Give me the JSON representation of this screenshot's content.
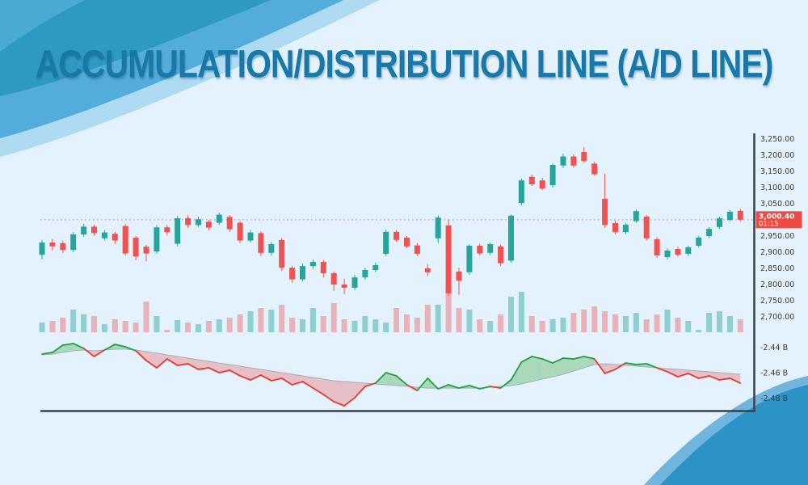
{
  "page": {
    "title": "ACCUMULATION/DISTRIBUTION LINE (A/D LINE)",
    "title_color": "#1878A8",
    "background": "#E3F2FC"
  },
  "decor": {
    "tl_pale": "#AEDAF2",
    "tl_mid": "#54ACDB",
    "tl_dark": "#2E99C3",
    "tl_corner": "#49ABD3",
    "br_highlight": "#6FB5DE",
    "br_main": "#2B93C6"
  },
  "chart_data": {
    "type": "candlestick",
    "title": "ACCUMULATION/DISTRIBUTION LINE (A/D LINE)",
    "panes": [
      "price-candles",
      "volume",
      "ad-indicator"
    ],
    "grid": "off",
    "legend": "none",
    "price_axis": {
      "side": "right",
      "min": 2700,
      "max": 3250,
      "step": 50,
      "labels": [
        {
          "text": "3,250.00",
          "value": 3250
        },
        {
          "text": "3,200.00",
          "value": 3200
        },
        {
          "text": "3,150.00",
          "value": 3150
        },
        {
          "text": "3,100.00",
          "value": 3100
        },
        {
          "text": "3,050.00",
          "value": 3050
        },
        {
          "text": "2,950.00",
          "value": 2950
        },
        {
          "text": "2,900.00",
          "value": 2900
        },
        {
          "text": "2,850.00",
          "value": 2850
        },
        {
          "text": "2,800.00",
          "value": 2800
        },
        {
          "text": "2,750.00",
          "value": 2750
        },
        {
          "text": "2,700.00",
          "value": 2700
        }
      ]
    },
    "last_price": {
      "text": "3,000.40",
      "time": "01:15",
      "value": 3000.4
    },
    "ad_axis": {
      "side": "right",
      "units": "billions",
      "labels": [
        {
          "text": "-2.44 B",
          "value": -2.44
        },
        {
          "text": "-2.46 B",
          "value": -2.46
        },
        {
          "text": "-2.48 B",
          "value": -2.48
        }
      ]
    },
    "candles": {
      "ohlc": [
        [
          2892,
          2938,
          2878,
          2930
        ],
        [
          2930,
          2941,
          2905,
          2918
        ],
        [
          2928,
          2935,
          2898,
          2907
        ],
        [
          2907,
          2962,
          2900,
          2955
        ],
        [
          2955,
          2988,
          2948,
          2979
        ],
        [
          2979,
          2985,
          2951,
          2959
        ],
        [
          2943,
          2968,
          2936,
          2961
        ],
        [
          2957,
          2963,
          2925,
          2936
        ],
        [
          2981,
          2987,
          2890,
          2896
        ],
        [
          2945,
          2950,
          2875,
          2887
        ],
        [
          2917,
          2922,
          2872,
          2896
        ],
        [
          2902,
          2983,
          2895,
          2977
        ],
        [
          2977,
          2984,
          2952,
          2962
        ],
        [
          2926,
          3012,
          2918,
          3005
        ],
        [
          3005,
          3014,
          2975,
          2984
        ],
        [
          2984,
          3010,
          2978,
          3002
        ],
        [
          2994,
          3000,
          2968,
          2976
        ],
        [
          2991,
          3022,
          2985,
          3016
        ],
        [
          3009,
          3015,
          2963,
          2971
        ],
        [
          2991,
          2996,
          2928,
          2936
        ],
        [
          2936,
          2968,
          2930,
          2961
        ],
        [
          2959,
          2964,
          2888,
          2898
        ],
        [
          2898,
          2932,
          2890,
          2925
        ],
        [
          2938,
          2944,
          2842,
          2852
        ],
        [
          2852,
          2858,
          2805,
          2816
        ],
        [
          2816,
          2865,
          2810,
          2857
        ],
        [
          2857,
          2878,
          2848,
          2870
        ],
        [
          2870,
          2876,
          2822,
          2835
        ],
        [
          2835,
          2840,
          2780,
          2800
        ],
        [
          2800,
          2818,
          2770,
          2790
        ],
        [
          2790,
          2830,
          2783,
          2822
        ],
        [
          2822,
          2852,
          2815,
          2845
        ],
        [
          2845,
          2868,
          2838,
          2860
        ],
        [
          2895,
          2970,
          2888,
          2963
        ],
        [
          2963,
          2968,
          2932,
          2938
        ],
        [
          2945,
          2950,
          2912,
          2918
        ],
        [
          2921,
          2928,
          2888,
          2895
        ],
        [
          2850,
          2862,
          2826,
          2838
        ],
        [
          2943,
          3014,
          2928,
          3007
        ],
        [
          2983,
          3001,
          2765,
          2773
        ],
        [
          2840,
          2852,
          2768,
          2812
        ],
        [
          2838,
          2925,
          2830,
          2920
        ],
        [
          2920,
          2926,
          2890,
          2896
        ],
        [
          2898,
          2930,
          2892,
          2925
        ],
        [
          2918,
          2924,
          2858,
          2866
        ],
        [
          2874,
          3016,
          2868,
          3013
        ],
        [
          3052,
          3128,
          3045,
          3122
        ],
        [
          3133,
          3140,
          3105,
          3110
        ],
        [
          3122,
          3130,
          3092,
          3097
        ],
        [
          3107,
          3175,
          3100,
          3170
        ],
        [
          3168,
          3205,
          3160,
          3196
        ],
        [
          3196,
          3202,
          3162,
          3168
        ],
        [
          3210,
          3225,
          3176,
          3182
        ],
        [
          3174,
          3180,
          3136,
          3141
        ],
        [
          3065,
          3142,
          2975,
          2984
        ],
        [
          2990,
          2998,
          2955,
          2962
        ],
        [
          2962,
          2990,
          2956,
          2985
        ],
        [
          2996,
          3032,
          2990,
          3027
        ],
        [
          3010,
          3016,
          2936,
          2943
        ],
        [
          2940,
          2946,
          2882,
          2890
        ],
        [
          2885,
          2912,
          2878,
          2905
        ],
        [
          2910,
          2916,
          2886,
          2892
        ],
        [
          2895,
          2920,
          2888,
          2915
        ],
        [
          2920,
          2950,
          2914,
          2945
        ],
        [
          2950,
          2978,
          2944,
          2972
        ],
        [
          2978,
          3010,
          2972,
          3005
        ],
        [
          3000,
          3030,
          2995,
          3025
        ],
        [
          3028,
          3034,
          2994,
          3000.4
        ]
      ]
    },
    "volume": [
      12,
      14,
      18,
      28,
      22,
      20,
      10,
      16,
      14,
      12,
      38,
      20,
      3,
      15,
      12,
      10,
      14,
      16,
      18,
      22,
      26,
      30,
      28,
      34,
      18,
      16,
      30,
      20,
      36,
      16,
      14,
      20,
      16,
      12,
      30,
      22,
      18,
      34,
      34,
      55,
      30,
      28,
      16,
      14,
      22,
      44,
      50,
      20,
      14,
      16,
      18,
      24,
      28,
      32,
      26,
      22,
      20,
      24,
      16,
      22,
      28,
      18,
      14,
      3,
      24,
      26,
      20,
      16
    ],
    "ad_indicator": {
      "ad": [
        -2.4451,
        -2.4438,
        -2.4381,
        -2.4368,
        -2.4406,
        -2.447,
        -2.4419,
        -2.4375,
        -2.4394,
        -2.4425,
        -2.4502,
        -2.4559,
        -2.4489,
        -2.454,
        -2.4527,
        -2.4571,
        -2.4559,
        -2.4597,
        -2.4578,
        -2.4622,
        -2.4654,
        -2.4616,
        -2.466,
        -2.4641,
        -2.4692,
        -2.4667,
        -2.4718,
        -2.4768,
        -2.4825,
        -2.4857,
        -2.4794,
        -2.4705,
        -2.4679,
        -2.4597,
        -2.4622,
        -2.4692,
        -2.4737,
        -2.4641,
        -2.4724,
        -2.4692,
        -2.4718,
        -2.4698,
        -2.4724,
        -2.4705,
        -2.4718,
        -2.4654,
        -2.4514,
        -2.447,
        -2.4489,
        -2.4521,
        -2.4483,
        -2.4489,
        -2.447,
        -2.4489,
        -2.4603,
        -2.4571,
        -2.4521,
        -2.4533,
        -2.4527,
        -2.4559,
        -2.459,
        -2.4629,
        -2.4603,
        -2.4641,
        -2.4622,
        -2.4654,
        -2.4641,
        -2.4679
      ],
      "signal": [
        -2.4457,
        -2.4451,
        -2.4438,
        -2.4425,
        -2.4419,
        -2.4425,
        -2.4419,
        -2.4413,
        -2.4413,
        -2.4419,
        -2.4432,
        -2.4444,
        -2.4457,
        -2.447,
        -2.4483,
        -2.4495,
        -2.4508,
        -2.4521,
        -2.4533,
        -2.4546,
        -2.4559,
        -2.4571,
        -2.4584,
        -2.4597,
        -2.461,
        -2.4622,
        -2.4635,
        -2.4648,
        -2.466,
        -2.4667,
        -2.4673,
        -2.4679,
        -2.4686,
        -2.4692,
        -2.4698,
        -2.4705,
        -2.4711,
        -2.4718,
        -2.4718,
        -2.4718,
        -2.4718,
        -2.4718,
        -2.4718,
        -2.4711,
        -2.4705,
        -2.4698,
        -2.4686,
        -2.4667,
        -2.4648,
        -2.4629,
        -2.461,
        -2.4584,
        -2.4559,
        -2.4533,
        -2.4527,
        -2.4533,
        -2.454,
        -2.4546,
        -2.4552,
        -2.4559,
        -2.4565,
        -2.4571,
        -2.4578,
        -2.4584,
        -2.459,
        -2.4597,
        -2.4603,
        -2.461
      ]
    },
    "colors": {
      "candle_up": "#26A69A",
      "candle_down": "#EF5350",
      "volume_up": "rgba(38,166,154,0.45)",
      "volume_down": "rgba(239,83,80,0.40)",
      "ad_up_line": "#22A042",
      "ad_down_line": "#E53935",
      "ad_up_fill": "rgba(76,175,80,0.38)",
      "ad_down_fill": "rgba(239,83,80,0.32)",
      "signal_line": "#9FA8B0",
      "axis_line": "#37424A",
      "axis_text": "#3C3C3C",
      "last_price_badge": "#F04A45",
      "last_price_text": "#FFFFFF",
      "dotted_line": "#F23645"
    }
  }
}
